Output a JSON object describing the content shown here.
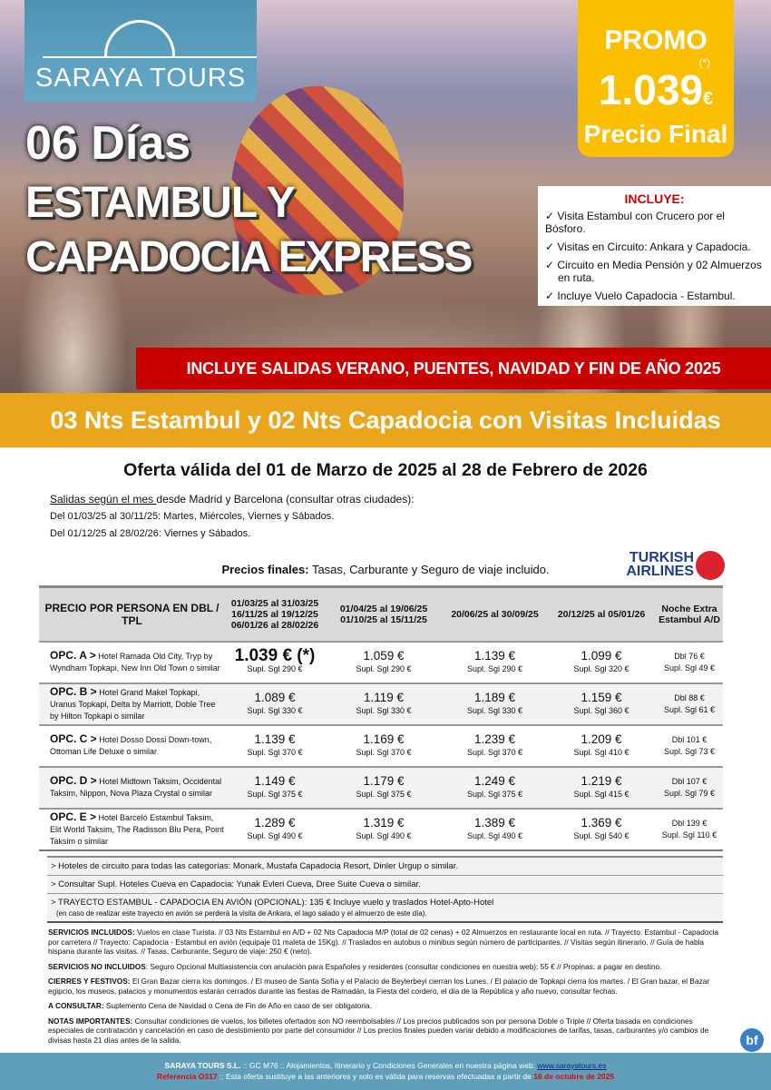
{
  "brand": {
    "name": "SARAYA TOURS",
    "color": "#5a9ab8"
  },
  "promo": {
    "label": "PROMO",
    "asterisk": "(*)",
    "price": "1.039",
    "currency": "€",
    "final": "Precio Final",
    "color": "#fcbf00"
  },
  "title": {
    "days": "06 Días",
    "line1": "ESTAMBUL Y",
    "line2": "CAPADOCIA EXPRESS"
  },
  "incluye": {
    "heading": "INCLUYE:",
    "items": [
      "✓ Visita Estambul con Crucero por el Bósforo.",
      "✓ Visitas en Circuito: Ankara y Capadocia.",
      "✓ Circuito en Media Pensión y 02 Almuerzos en ruta.",
      "✓ Incluye Vuelo Capadocia - Estambul."
    ]
  },
  "banner_red": "INCLUYE SALIDAS VERANO, PUENTES, NAVIDAD Y FIN DE AÑO 2025",
  "banner_orange": "03 Nts Estambul y 02 Nts Capadocia con Visitas Incluidas",
  "oferta": "Oferta válida del 01 de Marzo de 2025 al 28 de Febrero de 2026",
  "salidas": {
    "underlined": "Salidas según el mes ",
    "rest": "desde Madrid y Barcelona (consultar otras ciudades):",
    "line2": "Del 01/03/25 al 30/11/25: Martes, Miércoles, Viernes y Sábados.",
    "line3": "Del 01/12/25 al 28/02/26: Viernes y Sábados."
  },
  "precios_finales": {
    "bold": "Precios finales:",
    "rest": " Tasas, Carburante y Seguro de viaje incluido."
  },
  "airline": {
    "name1": "TURKISH",
    "name2": "AIRLINES"
  },
  "table": {
    "headers": [
      "PRECIO POR PERSONA EN DBL / TPL",
      "01/03/25 al 31/03/25 16/11/25 al 19/12/25 06/01/26 al 28/02/26",
      "01/04/25 al 19/06/25 01/10/25 al 15/11/25",
      "20/06/25 al 30/09/25",
      "20/12/25 al 05/01/26",
      "Noche Extra Estambul A/D"
    ],
    "rows": [
      {
        "opt": "OPC. A >",
        "hotels": "Hotel Ramada Old City, Tryp by Wyndham Topkapi, New Inn Old Town o similar",
        "prices": [
          "1.039 € (*)",
          "1.059 €",
          "1.139 €",
          "1.099 €"
        ],
        "supl": [
          "Supl. Sgl 290 €",
          "Supl. Sgl 290 €",
          "Supl. Sgl 290 €",
          "Supl. Sgl 320 €"
        ],
        "extra": "Dbl 76 €",
        "extra_supl": "Supl. Sgl 49 €"
      },
      {
        "opt": "OPC. B >",
        "hotels": "Hotel Grand Makel Topkapi, Uranus Topkapi, Delta by Marriott, Doble Tree by Hilton Topkapi o similar",
        "prices": [
          "1.089 €",
          "1.119 €",
          "1.189 €",
          "1.159 €"
        ],
        "supl": [
          "Supl. Sgl 330 €",
          "Supl. Sgl 330 €",
          "Supl. Sgl 330 €",
          "Supl. Sgl 360 €"
        ],
        "extra": "Dbl 88 €",
        "extra_supl": "Supl. Sgl 61 €"
      },
      {
        "opt": "OPC. C >",
        "hotels": "Hotel Dosso Dossi Down-town, Ottoman Life Deluxe o similar",
        "prices": [
          "1.139 €",
          "1.169 €",
          "1.239 €",
          "1.209 €"
        ],
        "supl": [
          "Supl. Sgl 370 €",
          "Supl. Sgl 370 €",
          "Supl. Sgl 370 €",
          "Supl. Sgl 410 €"
        ],
        "extra": "Dbl 101 €",
        "extra_supl": "Supl. Sgl 73 €"
      },
      {
        "opt": "OPC. D >",
        "hotels": "Hotel Midtown Taksim, Occidental Taksim, Nippon, Nova Plaza Crystal o similar",
        "prices": [
          "1.149 €",
          "1.179 €",
          "1.249 €",
          "1.219 €"
        ],
        "supl": [
          "Supl. Sgl 375 €",
          "Supl. Sgl 375 €",
          "Supl. Sgl 375 €",
          "Supl. Sgl 415 €"
        ],
        "extra": "Dbl 107 €",
        "extra_supl": "Supl. Sgl 79 €"
      },
      {
        "opt": "OPC. E >",
        "hotels": "Hotel Barceló Estambul Taksim, Elit World Taksim, The Radisson Blu Pera, Point Taksim o similar",
        "prices": [
          "1.289 €",
          "1.319 €",
          "1.389 €",
          "1.369 €"
        ],
        "supl": [
          "Supl. Sgl 490 €",
          "Supl. Sgl 490 €",
          "Supl. Sgl 490 €",
          "Supl. Sgl 540 €"
        ],
        "extra": "Dbl 139 €",
        "extra_supl": "Supl. Sgl 110 €"
      }
    ]
  },
  "notes": [
    "> Hoteles de circuito para todas las categorías: Monark, Mustafa Capadocia Resort, Dinler Urgup o similar.",
    "> Consultar Supl. Hoteles Cueva en Capadocia: Yunak Evleri Cueva, Dree Suite Cueva o similar.",
    "> TRAYECTO ESTAMBUL - CAPADOCIA EN AVIÓN (OPCIONAL): 135 € Incluye vuelo y traslados Hotel-Apto-Hotel"
  ],
  "notes_small": "(en caso de realizar este trayecto en avión se perderá la visita de Ankara, el lago salado y el almuerzo de este día).",
  "services": [
    {
      "label": "SERVICIOS INCLUIDOS:",
      "text": " Vuelos en clase Turista. // 03 Nts Estambul en A/D + 02 Nts Capadocia M/P (total de 02 cenas) + 02 Almuerzos en restaurante local en ruta. // Trayecto: Estambul - Capadocia por carretera // Trayecto: Capadocia - Estambul en avión (equipaje 01 maleta de 15Kg). // Traslados en autobus o minibus según número de participantes. // Visitas según itinerario. // Guía de habla hispana durante las visitas. // Tasas, Carburante, Seguro de viaje: 250 € (neto)."
    },
    {
      "label": "SERVICIOS NO INCLUIDOS",
      "text": ": Seguro Opcional Multiasistencia con anulación para Españoles y residentes (consultar condiciones en nuestra web): 55 € // Propinas: a pagar en destino."
    },
    {
      "label": "CIERRES Y FESTIVOS:",
      "text": " El Gran Bazar cierra los domingos. / El museo de Santa Sofía y el Palacio de Beylerbeyi cierran los Lunes. / El palacio de Topkapi cierra los martes. / El Gran bazar, el Bazar egipcio, los museos, palacios y monumentos estarán cerrados durante las fiestas de Ramadán, la Fiesta del cordero, el día de la República y año nuevo, consultar fechas."
    },
    {
      "label": "A CONSULTAR:",
      "text": " Suplemento Cena de Navidad o Cena de Fin de Año en caso de ser obligatoria."
    },
    {
      "label": "NOTAS IMPORTANTES:",
      "text": " Consultar condiciones de vuelos, los billetes ofertados son NO reembolsables // Los precios publicados son por persona Doble o Triple // Oferta basada en condiciones especiales de contratación y cancelación en caso de desistimiento por parte del consumidor // Los precios finales pueden variar debido a modificaciones de tarifas, tasas, carburantes y/o cambios de divisas hasta 21 días antes de la salida."
    }
  ],
  "bf_logo": "bf",
  "footer": {
    "company": "SARAYA TOURS S.L.",
    "line1": " :: GC M76 ::  Alojamientos, Itinerario y Condiciones Generales en nuestra página web:  ",
    "web": "www.sarayatours.es",
    "ref": "Referencia O317",
    "line2": " :: Esta oferta sustituye a las anteriores y solo es válida para reservas efectuadas a partir de ",
    "date": "16 de octubre de 2025"
  }
}
